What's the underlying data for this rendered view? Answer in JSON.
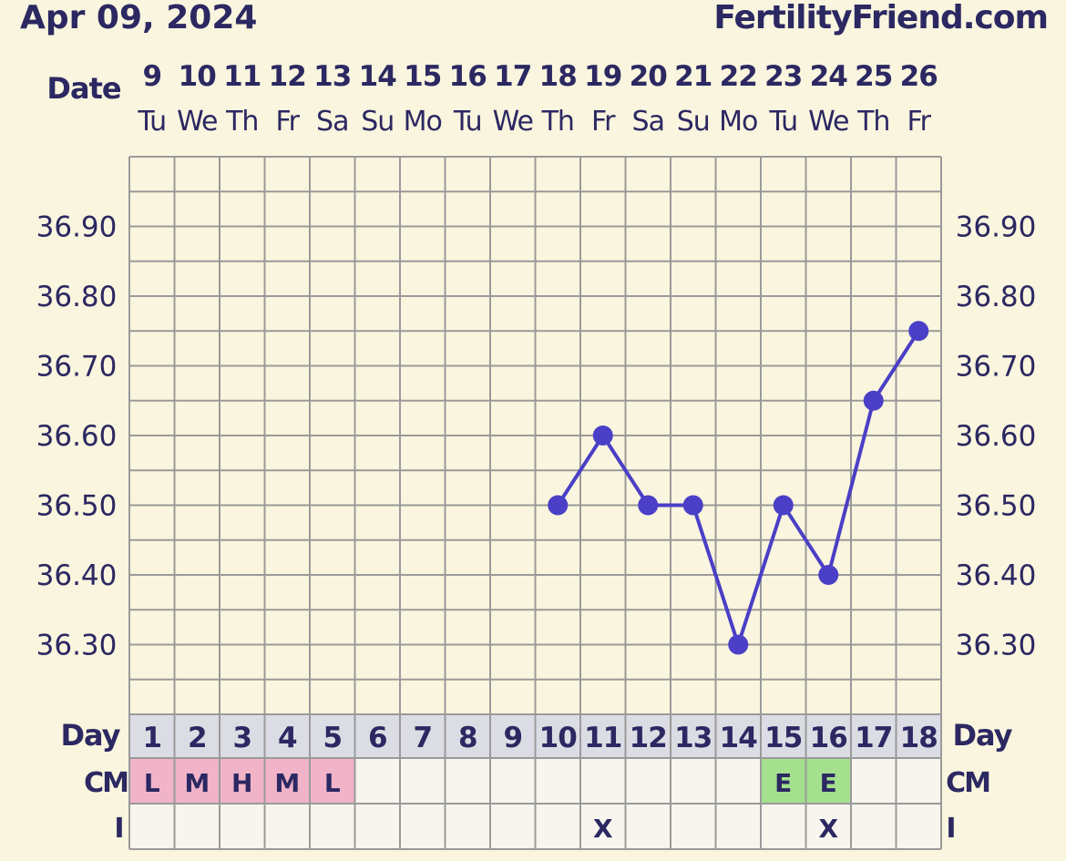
{
  "header": {
    "date": "Apr 09, 2024",
    "site": "FertilityFriend.com"
  },
  "colors": {
    "background": "#faf5de",
    "grid": "#9a9a9a",
    "text": "#2b2862",
    "line": "#4a3fc6",
    "day_row_fill": "#dcdde4",
    "cm_menses_fill": "#f0b3c8",
    "cm_egg_white_fill": "#a5e08e"
  },
  "chart_data": {
    "type": "line",
    "x_title": "Date",
    "dates": [
      "9",
      "10",
      "11",
      "12",
      "13",
      "14",
      "15",
      "16",
      "17",
      "18",
      "19",
      "20",
      "21",
      "22",
      "23",
      "24",
      "25",
      "26"
    ],
    "weekdays": [
      "Tu",
      "We",
      "Th",
      "Fr",
      "Sa",
      "Su",
      "Mo",
      "Tu",
      "We",
      "Th",
      "Fr",
      "Sa",
      "Su",
      "Mo",
      "Tu",
      "We",
      "Th",
      "Fr"
    ],
    "cycle_day_label": "Day",
    "cycle_days": [
      "1",
      "2",
      "3",
      "4",
      "5",
      "6",
      "7",
      "8",
      "9",
      "10",
      "11",
      "12",
      "13",
      "14",
      "15",
      "16",
      "17",
      "18"
    ],
    "y_ticks": [
      "36.90",
      "36.80",
      "36.70",
      "36.60",
      "36.50",
      "36.40",
      "36.30"
    ],
    "ylim": [
      36.2,
      37.0
    ],
    "series": [
      {
        "values": [
          null,
          null,
          null,
          null,
          null,
          null,
          null,
          null,
          null,
          36.5,
          36.6,
          36.5,
          36.5,
          36.3,
          36.5,
          36.4,
          36.65,
          36.75
        ]
      }
    ],
    "cm_label": "CM",
    "cm": [
      "L",
      "M",
      "H",
      "M",
      "L",
      "",
      "",
      "",
      "",
      "",
      "",
      "",
      "",
      "",
      "E",
      "E",
      "",
      ""
    ],
    "cm_types": [
      "menses",
      "menses",
      "menses",
      "menses",
      "menses",
      "",
      "",
      "",
      "",
      "",
      "",
      "",
      "",
      "",
      "egg-white",
      "egg-white",
      "",
      ""
    ],
    "i_label": "I",
    "intercourse": [
      "",
      "",
      "",
      "",
      "",
      "",
      "",
      "",
      "",
      "",
      "X",
      "",
      "",
      "",
      "",
      "X",
      "",
      ""
    ],
    "grid": true
  }
}
